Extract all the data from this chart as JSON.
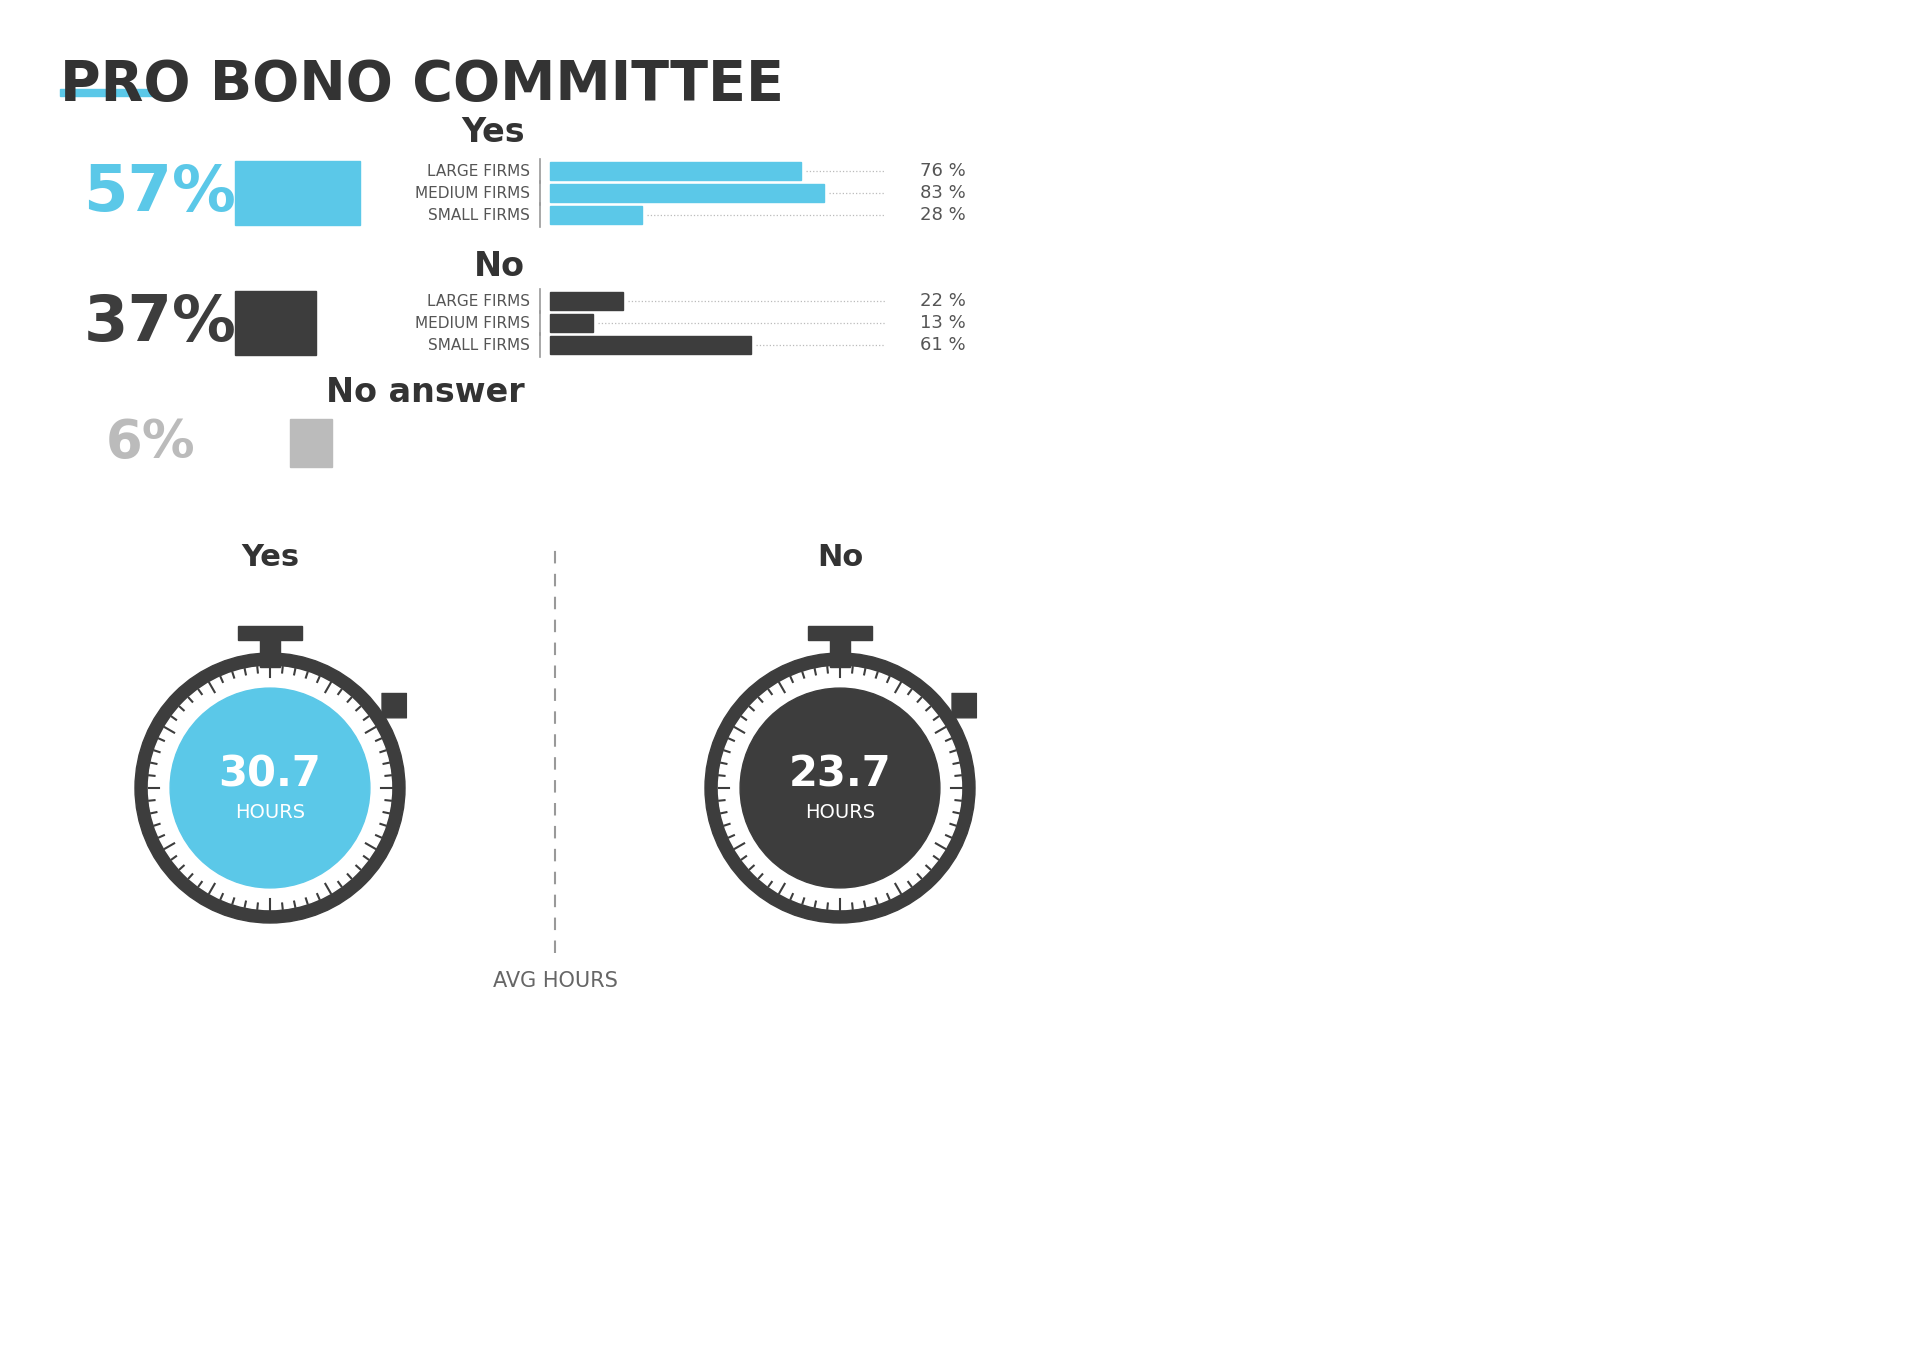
{
  "title": "PRO BONO COMMITTEE",
  "title_color": "#333333",
  "accent_color": "#5BC8E8",
  "bg_color": "#ffffff",
  "yes_pct": 57,
  "no_pct": 37,
  "no_answer_pct": 6,
  "yes_label": "Yes",
  "no_label": "No",
  "no_answer_label": "No answer",
  "yes_bar_color": "#5BC8E8",
  "no_bar_color": "#3D3D3D",
  "no_answer_bar_color": "#BBBBBB",
  "yes_pct_color": "#5BC8E8",
  "no_pct_color": "#3D3D3D",
  "no_answer_pct_color": "#BBBBBB",
  "yes_firms_labels": [
    "LARGE FIRMS",
    "MEDIUM FIRMS",
    "SMALL FIRMS"
  ],
  "yes_firms_values": [
    76,
    83,
    28
  ],
  "no_firms_labels": [
    "LARGE FIRMS",
    "MEDIUM FIRMS",
    "SMALL FIRMS"
  ],
  "no_firms_values": [
    22,
    13,
    61
  ],
  "yes_hours": "30.7",
  "no_hours": "23.7",
  "hours_label": "AVG HOURS",
  "hours_yes_label": "Yes",
  "hours_no_label": "No",
  "stopwatch_outer_color": "#3D3D3D",
  "stopwatch_yes_inner_color": "#5BC8E8",
  "stopwatch_no_inner_color": "#3D3D3D",
  "stopwatch_text_color": "#ffffff",
  "hours_unit": "HOURS"
}
